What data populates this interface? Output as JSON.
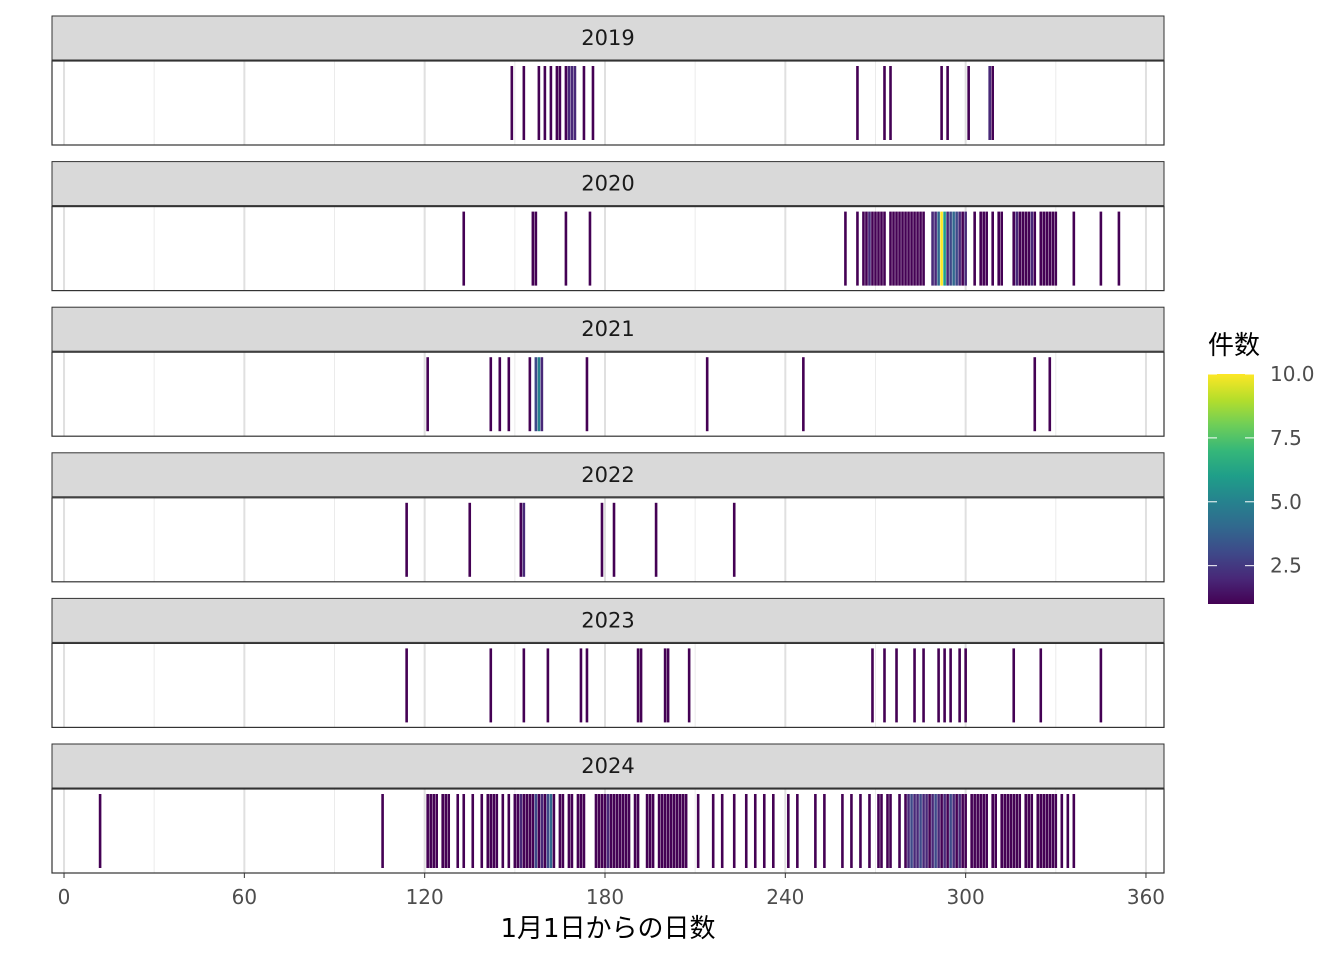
{
  "chart_data": {
    "type": "heatmap",
    "facet_by": "year",
    "xlabel": "1月1日からの日数",
    "xlim": [
      -4,
      366
    ],
    "xticks": [
      0,
      60,
      120,
      180,
      240,
      300,
      360
    ],
    "grid": true,
    "legend": {
      "title": "件数",
      "placement": "right",
      "min": 1,
      "max": 10,
      "ticks": [
        {
          "value": 2.5,
          "label": "2.5"
        },
        {
          "value": 5.0,
          "label": "5.0"
        },
        {
          "value": 7.5,
          "label": "7.5"
        },
        {
          "value": 10.0,
          "label": "10.0"
        }
      ],
      "colors": [
        "#440154",
        "#482878",
        "#3e4989",
        "#31688e",
        "#26828e",
        "#1f9e89",
        "#35b779",
        "#6ece58",
        "#b5de2b",
        "#fde725"
      ]
    },
    "panels": [
      {
        "year": "2019",
        "points": [
          [
            149,
            1
          ],
          [
            153,
            1
          ],
          [
            158,
            1
          ],
          [
            160,
            1
          ],
          [
            162,
            1
          ],
          [
            164,
            1
          ],
          [
            165,
            1
          ],
          [
            167,
            1
          ],
          [
            168,
            2
          ],
          [
            169,
            2
          ],
          [
            170,
            2
          ],
          [
            173,
            1
          ],
          [
            176,
            1
          ],
          [
            264,
            1
          ],
          [
            273,
            1
          ],
          [
            275,
            1
          ],
          [
            292,
            1
          ],
          [
            294,
            1
          ],
          [
            301,
            1
          ],
          [
            308,
            2
          ],
          [
            309,
            1
          ]
        ]
      },
      {
        "year": "2020",
        "points": [
          [
            133,
            1
          ],
          [
            156,
            1
          ],
          [
            157,
            1
          ],
          [
            167,
            1
          ],
          [
            175,
            1
          ],
          [
            260,
            1
          ],
          [
            264,
            1
          ],
          [
            266,
            1
          ],
          [
            267,
            1
          ],
          [
            268,
            2
          ],
          [
            269,
            1
          ],
          [
            270,
            1
          ],
          [
            271,
            1
          ],
          [
            272,
            1
          ],
          [
            273,
            1
          ],
          [
            275,
            1
          ],
          [
            276,
            1
          ],
          [
            277,
            1
          ],
          [
            278,
            1
          ],
          [
            279,
            1
          ],
          [
            280,
            1
          ],
          [
            281,
            1
          ],
          [
            282,
            1
          ],
          [
            283,
            1
          ],
          [
            284,
            1
          ],
          [
            285,
            1
          ],
          [
            286,
            1
          ],
          [
            289,
            2
          ],
          [
            290,
            2
          ],
          [
            291,
            4
          ],
          [
            292,
            10
          ],
          [
            293,
            6
          ],
          [
            294,
            2
          ],
          [
            295,
            3
          ],
          [
            296,
            4
          ],
          [
            297,
            3
          ],
          [
            298,
            2
          ],
          [
            299,
            1
          ],
          [
            300,
            2
          ],
          [
            303,
            1
          ],
          [
            305,
            1
          ],
          [
            306,
            1
          ],
          [
            307,
            1
          ],
          [
            309,
            1
          ],
          [
            311,
            1
          ],
          [
            312,
            1
          ],
          [
            316,
            1
          ],
          [
            317,
            2
          ],
          [
            318,
            1
          ],
          [
            319,
            1
          ],
          [
            320,
            1
          ],
          [
            321,
            1
          ],
          [
            322,
            2
          ],
          [
            323,
            1
          ],
          [
            325,
            1
          ],
          [
            326,
            1
          ],
          [
            327,
            1
          ],
          [
            328,
            1
          ],
          [
            329,
            1
          ],
          [
            330,
            1
          ],
          [
            336,
            1
          ],
          [
            345,
            1
          ],
          [
            351,
            1
          ]
        ]
      },
      {
        "year": "2021",
        "points": [
          [
            121,
            1
          ],
          [
            142,
            1
          ],
          [
            145,
            1
          ],
          [
            148,
            1
          ],
          [
            155,
            1
          ],
          [
            157,
            3
          ],
          [
            158,
            5
          ],
          [
            159,
            2
          ],
          [
            174,
            1
          ],
          [
            214,
            1
          ],
          [
            246,
            1
          ],
          [
            323,
            1
          ],
          [
            328,
            1
          ]
        ]
      },
      {
        "year": "2022",
        "points": [
          [
            114,
            1
          ],
          [
            135,
            1
          ],
          [
            152,
            1
          ],
          [
            153,
            2
          ],
          [
            179,
            1
          ],
          [
            183,
            1
          ],
          [
            197,
            1
          ],
          [
            223,
            1
          ]
        ]
      },
      {
        "year": "2023",
        "points": [
          [
            114,
            1
          ],
          [
            142,
            1
          ],
          [
            153,
            1
          ],
          [
            161,
            1
          ],
          [
            172,
            1
          ],
          [
            174,
            1
          ],
          [
            191,
            1
          ],
          [
            192,
            1
          ],
          [
            200,
            1
          ],
          [
            201,
            1
          ],
          [
            208,
            1
          ],
          [
            269,
            1
          ],
          [
            273,
            1
          ],
          [
            277,
            1
          ],
          [
            283,
            1
          ],
          [
            286,
            1
          ],
          [
            291,
            1
          ],
          [
            293,
            1
          ],
          [
            295,
            1
          ],
          [
            298,
            1
          ],
          [
            300,
            1
          ],
          [
            316,
            1
          ],
          [
            325,
            1
          ],
          [
            345,
            1
          ]
        ]
      },
      {
        "year": "2024",
        "points": [
          [
            12,
            1
          ],
          [
            106,
            1
          ],
          [
            121,
            1
          ],
          [
            122,
            1
          ],
          [
            123,
            1
          ],
          [
            124,
            1
          ],
          [
            126,
            1
          ],
          [
            127,
            1
          ],
          [
            128,
            1
          ],
          [
            131,
            1
          ],
          [
            133,
            1
          ],
          [
            136,
            1
          ],
          [
            139,
            1
          ],
          [
            141,
            1
          ],
          [
            142,
            1
          ],
          [
            143,
            1
          ],
          [
            144,
            1
          ],
          [
            146,
            1
          ],
          [
            148,
            1
          ],
          [
            150,
            1
          ],
          [
            151,
            1
          ],
          [
            152,
            2
          ],
          [
            153,
            1
          ],
          [
            154,
            1
          ],
          [
            155,
            1
          ],
          [
            156,
            1
          ],
          [
            157,
            3
          ],
          [
            158,
            1
          ],
          [
            159,
            2
          ],
          [
            160,
            1
          ],
          [
            161,
            3
          ],
          [
            162,
            4
          ],
          [
            163,
            1
          ],
          [
            165,
            1
          ],
          [
            166,
            1
          ],
          [
            168,
            1
          ],
          [
            169,
            1
          ],
          [
            171,
            1
          ],
          [
            172,
            1
          ],
          [
            173,
            1
          ],
          [
            177,
            1
          ],
          [
            178,
            1
          ],
          [
            179,
            1
          ],
          [
            180,
            1
          ],
          [
            181,
            2
          ],
          [
            182,
            1
          ],
          [
            183,
            1
          ],
          [
            184,
            1
          ],
          [
            185,
            1
          ],
          [
            186,
            1
          ],
          [
            187,
            1
          ],
          [
            188,
            1
          ],
          [
            190,
            1
          ],
          [
            191,
            1
          ],
          [
            194,
            1
          ],
          [
            195,
            1
          ],
          [
            196,
            1
          ],
          [
            198,
            1
          ],
          [
            199,
            1
          ],
          [
            200,
            1
          ],
          [
            201,
            1
          ],
          [
            202,
            1
          ],
          [
            203,
            1
          ],
          [
            204,
            1
          ],
          [
            205,
            1
          ],
          [
            206,
            1
          ],
          [
            207,
            1
          ],
          [
            211,
            1
          ],
          [
            216,
            1
          ],
          [
            219,
            1
          ],
          [
            223,
            1
          ],
          [
            227,
            1
          ],
          [
            230,
            1
          ],
          [
            233,
            1
          ],
          [
            236,
            1
          ],
          [
            241,
            1
          ],
          [
            244,
            1
          ],
          [
            250,
            1
          ],
          [
            253,
            1
          ],
          [
            259,
            1
          ],
          [
            262,
            1
          ],
          [
            265,
            1
          ],
          [
            268,
            1
          ],
          [
            271,
            1
          ],
          [
            272,
            1
          ],
          [
            274,
            1
          ],
          [
            275,
            1
          ],
          [
            278,
            1
          ],
          [
            280,
            1
          ],
          [
            281,
            2
          ],
          [
            282,
            3
          ],
          [
            283,
            2
          ],
          [
            284,
            2
          ],
          [
            285,
            3
          ],
          [
            286,
            2
          ],
          [
            287,
            2
          ],
          [
            288,
            1
          ],
          [
            289,
            2
          ],
          [
            290,
            3
          ],
          [
            291,
            2
          ],
          [
            292,
            1
          ],
          [
            293,
            2
          ],
          [
            294,
            1
          ],
          [
            295,
            3
          ],
          [
            296,
            2
          ],
          [
            297,
            1
          ],
          [
            298,
            2
          ],
          [
            299,
            1
          ],
          [
            300,
            1
          ],
          [
            302,
            1
          ],
          [
            303,
            1
          ],
          [
            304,
            1
          ],
          [
            305,
            1
          ],
          [
            306,
            1
          ],
          [
            307,
            1
          ],
          [
            309,
            1
          ],
          [
            310,
            1
          ],
          [
            312,
            1
          ],
          [
            313,
            1
          ],
          [
            314,
            1
          ],
          [
            315,
            1
          ],
          [
            316,
            1
          ],
          [
            317,
            1
          ],
          [
            318,
            1
          ],
          [
            320,
            1
          ],
          [
            321,
            1
          ],
          [
            322,
            1
          ],
          [
            324,
            1
          ],
          [
            325,
            1
          ],
          [
            326,
            1
          ],
          [
            327,
            1
          ],
          [
            328,
            1
          ],
          [
            329,
            1
          ],
          [
            330,
            1
          ],
          [
            332,
            1
          ],
          [
            334,
            1
          ],
          [
            336,
            1
          ]
        ]
      }
    ]
  }
}
